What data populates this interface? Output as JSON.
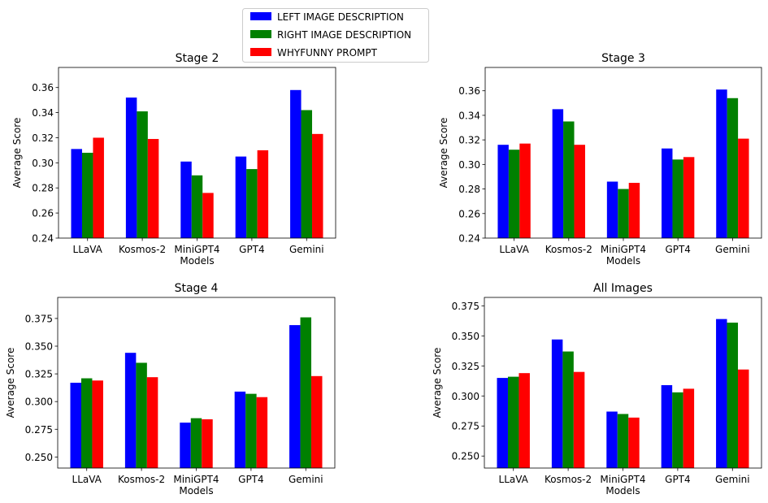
{
  "legend": {
    "placement": "top-center",
    "entries": [
      {
        "label": "LEFT IMAGE DESCRIPTION",
        "color": "#0000ff"
      },
      {
        "label": "RIGHT IMAGE DESCRIPTION",
        "color": "#008000"
      },
      {
        "label": "WHYFUNNY PROMPT",
        "color": "#ff0000"
      }
    ]
  },
  "chart_data": [
    {
      "type": "bar",
      "title": "Stage 2",
      "xlabel": "Models",
      "ylabel": "Average Score",
      "categories": [
        "LLaVA",
        "Kosmos-2",
        "MiniGPT4",
        "GPT4",
        "Gemini"
      ],
      "ylim": [
        0.24,
        0.376
      ],
      "yticks": [
        "0.24",
        "0.26",
        "0.28",
        "0.30",
        "0.32",
        "0.34",
        "0.36"
      ],
      "grid": false,
      "series": [
        {
          "name": "LEFT IMAGE DESCRIPTION",
          "values": [
            0.311,
            0.352,
            0.301,
            0.305,
            0.358
          ]
        },
        {
          "name": "RIGHT IMAGE DESCRIPTION",
          "values": [
            0.308,
            0.341,
            0.29,
            0.295,
            0.342
          ]
        },
        {
          "name": "WHYFUNNY PROMPT",
          "values": [
            0.32,
            0.319,
            0.276,
            0.31,
            0.323
          ]
        }
      ]
    },
    {
      "type": "bar",
      "title": "Stage 3",
      "xlabel": "Models",
      "ylabel": "Average Score",
      "categories": [
        "LLaVA",
        "Kosmos-2",
        "MiniGPT4",
        "GPT4",
        "Gemini"
      ],
      "ylim": [
        0.24,
        0.379
      ],
      "yticks": [
        "0.24",
        "0.26",
        "0.28",
        "0.30",
        "0.32",
        "0.34",
        "0.36"
      ],
      "grid": false,
      "series": [
        {
          "name": "LEFT IMAGE DESCRIPTION",
          "values": [
            0.316,
            0.345,
            0.286,
            0.313,
            0.361
          ]
        },
        {
          "name": "RIGHT IMAGE DESCRIPTION",
          "values": [
            0.312,
            0.335,
            0.28,
            0.304,
            0.354
          ]
        },
        {
          "name": "WHYFUNNY PROMPT",
          "values": [
            0.317,
            0.316,
            0.285,
            0.306,
            0.321
          ]
        }
      ]
    },
    {
      "type": "bar",
      "title": "Stage 4",
      "xlabel": "Models",
      "ylabel": "Average Score",
      "categories": [
        "LLaVA",
        "Kosmos-2",
        "MiniGPT4",
        "GPT4",
        "Gemini"
      ],
      "ylim": [
        0.24,
        0.394
      ],
      "yticks": [
        "0.250",
        "0.275",
        "0.300",
        "0.325",
        "0.350",
        "0.375"
      ],
      "grid": false,
      "series": [
        {
          "name": "LEFT IMAGE DESCRIPTION",
          "values": [
            0.317,
            0.344,
            0.281,
            0.309,
            0.369
          ]
        },
        {
          "name": "RIGHT IMAGE DESCRIPTION",
          "values": [
            0.321,
            0.335,
            0.285,
            0.307,
            0.376
          ]
        },
        {
          "name": "WHYFUNNY PROMPT",
          "values": [
            0.319,
            0.322,
            0.284,
            0.304,
            0.323
          ]
        }
      ]
    },
    {
      "type": "bar",
      "title": "All Images",
      "xlabel": "Models",
      "ylabel": "Average Score",
      "categories": [
        "LLaVA",
        "Kosmos-2",
        "MiniGPT4",
        "GPT4",
        "Gemini"
      ],
      "ylim": [
        0.24,
        0.382
      ],
      "yticks": [
        "0.250",
        "0.275",
        "0.300",
        "0.325",
        "0.350",
        "0.375"
      ],
      "grid": false,
      "series": [
        {
          "name": "LEFT IMAGE DESCRIPTION",
          "values": [
            0.315,
            0.347,
            0.287,
            0.309,
            0.364
          ]
        },
        {
          "name": "RIGHT IMAGE DESCRIPTION",
          "values": [
            0.316,
            0.337,
            0.285,
            0.303,
            0.361
          ]
        },
        {
          "name": "WHYFUNNY PROMPT",
          "values": [
            0.319,
            0.32,
            0.282,
            0.306,
            0.322
          ]
        }
      ]
    }
  ]
}
